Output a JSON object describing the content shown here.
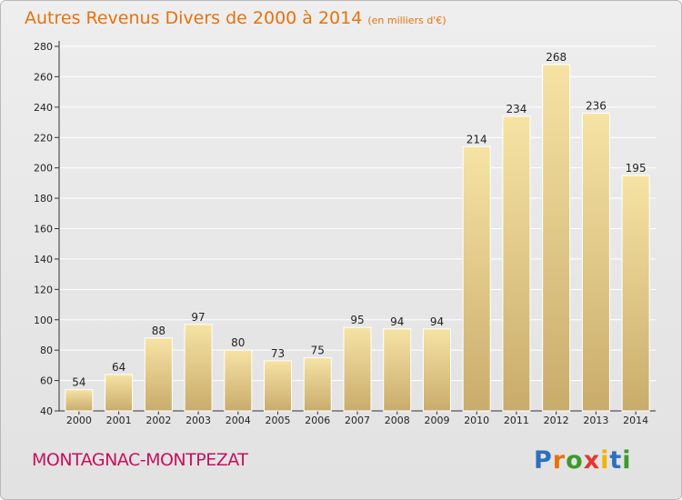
{
  "title": {
    "main": "Autres Revenus Divers de 2000 à 2014",
    "unit": "(en milliers d'€)"
  },
  "place": "MONTAGNAC-MONTPEZAT",
  "logo": {
    "text": "Proxiti",
    "letters": [
      {
        "ch": "P",
        "color": "#2d6fbf"
      },
      {
        "ch": "r",
        "color": "#e8720c"
      },
      {
        "ch": "o",
        "color": "#3a9a2c"
      },
      {
        "ch": "x",
        "color": "#e03a2c"
      },
      {
        "ch": "i",
        "color": "#f0b400"
      },
      {
        "ch": "t",
        "color": "#2d6fbf"
      },
      {
        "ch": "i",
        "color": "#3a9a2c"
      }
    ]
  },
  "colors": {
    "title": "#e8720c",
    "place": "#c8105e",
    "bar_light": "#f6e3a4",
    "bar_dark": "#c9ac6c"
  },
  "chart_data": {
    "type": "bar",
    "categories": [
      "2000",
      "2001",
      "2002",
      "2003",
      "2004",
      "2005",
      "2006",
      "2007",
      "2008",
      "2009",
      "2010",
      "2011",
      "2012",
      "2013",
      "2014"
    ],
    "values": [
      54,
      64,
      88,
      97,
      80,
      73,
      75,
      95,
      94,
      94,
      214,
      234,
      268,
      236,
      195
    ],
    "title": "Autres Revenus Divers de 2000 à 2014",
    "subtitle": "(en milliers d'€)",
    "xlabel": "",
    "ylabel": "",
    "ylim": [
      40,
      280
    ],
    "yticks": [
      40,
      60,
      80,
      100,
      120,
      140,
      160,
      180,
      200,
      220,
      240,
      260,
      280
    ],
    "grid": true,
    "legend": "none"
  }
}
